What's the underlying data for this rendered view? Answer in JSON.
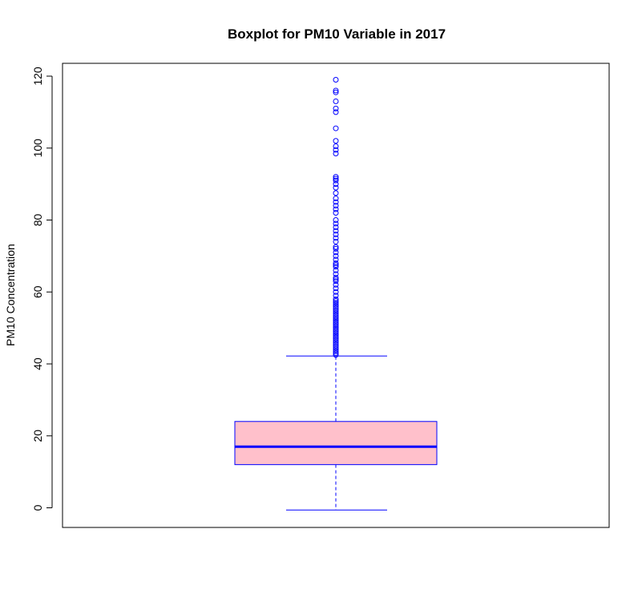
{
  "chart_data": {
    "type": "boxplot",
    "title": "Boxplot for PM10 Variable in 2017",
    "ylabel": "PM10 Concentration",
    "xlabel": "",
    "ylim": [
      -5,
      125
    ],
    "yticks": [
      0,
      20,
      40,
      60,
      80,
      100,
      120
    ],
    "ytick_labels": [
      "0",
      "20",
      "40",
      "60",
      "80",
      "100",
      "120"
    ],
    "box": {
      "lower_whisker": -0.6,
      "q1": 12.0,
      "median": 17.0,
      "q3": 24.0,
      "upper_whisker": 42.2
    },
    "outliers": [
      42.5,
      43,
      43.5,
      44,
      44.5,
      45,
      45.5,
      46,
      46.5,
      47,
      47.5,
      48,
      48.5,
      49,
      49.5,
      50,
      50.5,
      51,
      51.5,
      52,
      52.5,
      53,
      53.5,
      54,
      54.5,
      55,
      55.5,
      56,
      56.5,
      57,
      57.5,
      58,
      59,
      60,
      61,
      62,
      63,
      63.5,
      64,
      65,
      66,
      67,
      67.5,
      68,
      69,
      70,
      71,
      72,
      72.5,
      74,
      75,
      76,
      77,
      78,
      79,
      80,
      82,
      83,
      84,
      85,
      86,
      87.5,
      89,
      90,
      91,
      91.5,
      92,
      98.5,
      99.5,
      100.5,
      102,
      105.5,
      110,
      111,
      113,
      115.5,
      116,
      119
    ],
    "colors": {
      "box_fill": "#FFC0CB",
      "box_border": "#0000FF",
      "median": "#0000FF",
      "whisker": "#0000FF",
      "outlier": "#0000FF"
    },
    "grid": false
  }
}
